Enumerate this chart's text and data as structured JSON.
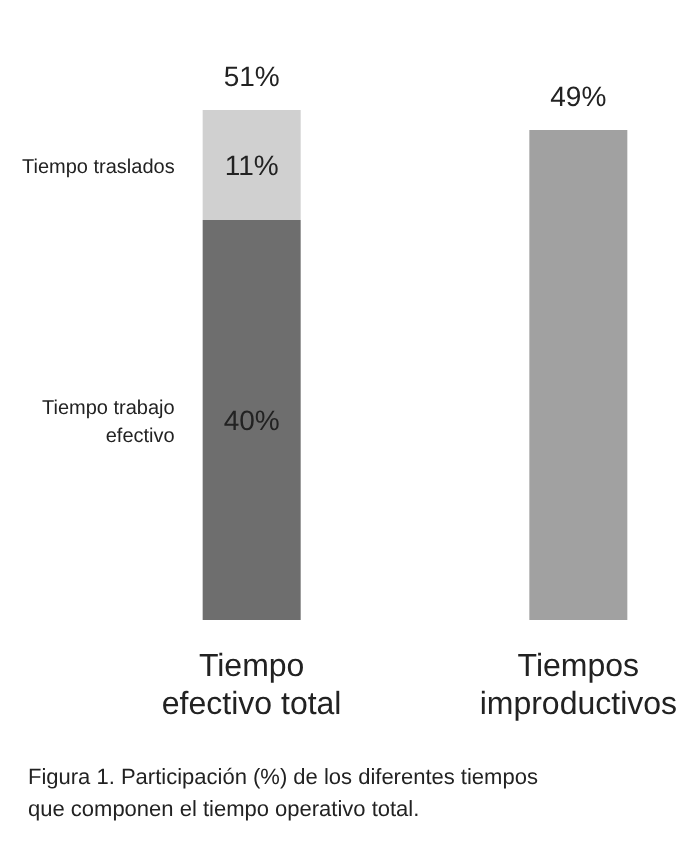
{
  "chart_data": {
    "type": "bar",
    "stacked": true,
    "categories": [
      "Tiempo efectivo total",
      "Tiempos improductivos"
    ],
    "series": [
      {
        "name": "Tiempo trabajo efectivo",
        "colors": [
          "#6e6e6e",
          "#a1a1a1"
        ],
        "values": [
          40,
          49
        ],
        "value_labels": [
          "40%",
          null
        ]
      },
      {
        "name": "Tiempo traslados",
        "color": "#d0d0d0",
        "values": [
          11,
          null
        ],
        "value_labels": [
          "11%",
          null
        ]
      }
    ],
    "totals": [
      "51%",
      "49%"
    ],
    "tick_labels": "x",
    "annotations": [
      "Figura 1. Participación (%) de los diferentes tiempos que componen el tiempo operativo total."
    ]
  }
}
